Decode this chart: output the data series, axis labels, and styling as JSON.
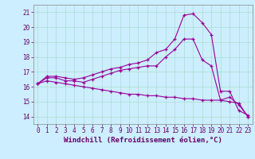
{
  "xlabel": "Windchill (Refroidissement éolien,°C)",
  "x": [
    0,
    1,
    2,
    3,
    4,
    5,
    6,
    7,
    8,
    9,
    10,
    11,
    12,
    13,
    14,
    15,
    16,
    17,
    18,
    19,
    20,
    21,
    22,
    23
  ],
  "line1": [
    16.2,
    16.6,
    16.6,
    16.4,
    16.4,
    16.3,
    16.5,
    16.7,
    16.9,
    17.1,
    17.2,
    17.3,
    17.4,
    17.4,
    18.0,
    18.5,
    19.2,
    19.2,
    17.8,
    17.4,
    15.1,
    15.3,
    14.8,
    14.0
  ],
  "line2": [
    16.2,
    16.7,
    16.7,
    16.6,
    16.5,
    16.6,
    16.8,
    17.0,
    17.2,
    17.3,
    17.5,
    17.6,
    17.8,
    18.3,
    18.5,
    19.2,
    20.8,
    20.9,
    20.3,
    19.5,
    15.7,
    15.7,
    14.4,
    14.1
  ],
  "line3": [
    16.2,
    16.4,
    16.3,
    16.2,
    16.1,
    16.0,
    15.9,
    15.8,
    15.7,
    15.6,
    15.5,
    15.5,
    15.4,
    15.4,
    15.3,
    15.3,
    15.2,
    15.2,
    15.1,
    15.1,
    15.1,
    15.0,
    14.9,
    14.0
  ],
  "line_color": "#990099",
  "bg_color": "#cceeff",
  "grid_color": "#aaddcc",
  "ylim": [
    13.5,
    21.5
  ],
  "xlim": [
    -0.5,
    23.5
  ],
  "yticks": [
    14,
    15,
    16,
    17,
    18,
    19,
    20,
    21
  ],
  "xticks": [
    0,
    1,
    2,
    3,
    4,
    5,
    6,
    7,
    8,
    9,
    10,
    11,
    12,
    13,
    14,
    15,
    16,
    17,
    18,
    19,
    20,
    21,
    22,
    23
  ],
  "tick_fontsize": 5.5,
  "xlabel_fontsize": 6.5,
  "marker": "+"
}
